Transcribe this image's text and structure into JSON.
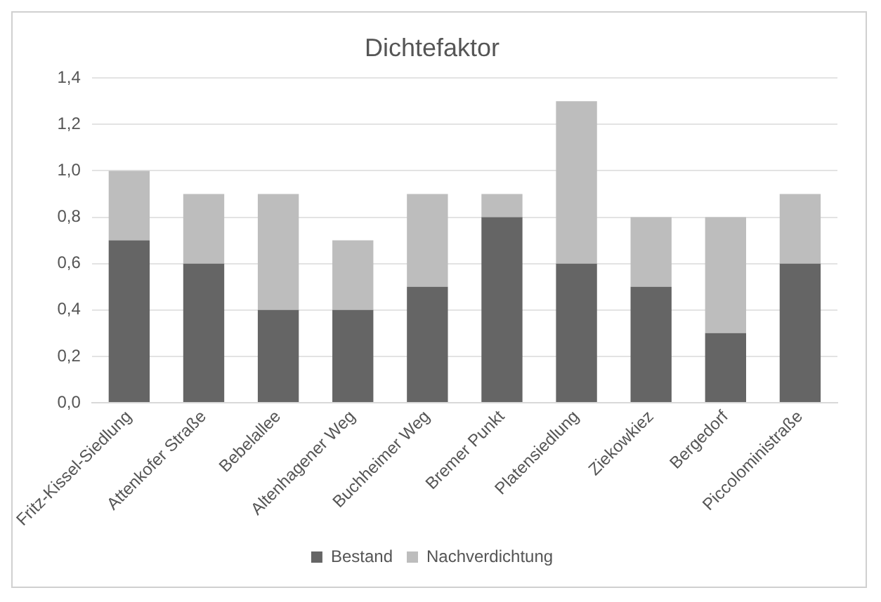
{
  "chart_data": {
    "type": "bar",
    "title": "Dichtefaktor",
    "stacked": true,
    "legend": "bottom",
    "grid": "y",
    "categories": [
      "Fritz-Kissel-Siedlung",
      "Attenkofer Straße",
      "Bebelallee",
      "Altenhagener Weg",
      "Buchheimer Weg",
      "Bremer Punkt",
      "Platensiedlung",
      "Ziekowkiez",
      "Bergedorf",
      "Piccoloministraße"
    ],
    "series": [
      {
        "name": "Bestand",
        "color": "#656565",
        "values": [
          0.7,
          0.6,
          0.4,
          0.4,
          0.5,
          0.8,
          0.6,
          0.5,
          0.3,
          0.6
        ]
      },
      {
        "name": "Nachverdichtung",
        "color": "#bdbdbd",
        "values": [
          0.3,
          0.3,
          0.5,
          0.3,
          0.4,
          0.1,
          0.7,
          0.3,
          0.5,
          0.3
        ]
      }
    ],
    "ylim": [
      0,
      1.4
    ],
    "yticks": [
      {
        "value": 0,
        "label": "0,0"
      },
      {
        "value": 0.2,
        "label": "0,2"
      },
      {
        "value": 0.4,
        "label": "0,4"
      },
      {
        "value": 0.6,
        "label": "0,6"
      },
      {
        "value": 0.8,
        "label": "0,8"
      },
      {
        "value": 1,
        "label": "1,0"
      },
      {
        "value": 1.2,
        "label": "1,2"
      },
      {
        "value": 1.4,
        "label": "1,4"
      }
    ]
  }
}
